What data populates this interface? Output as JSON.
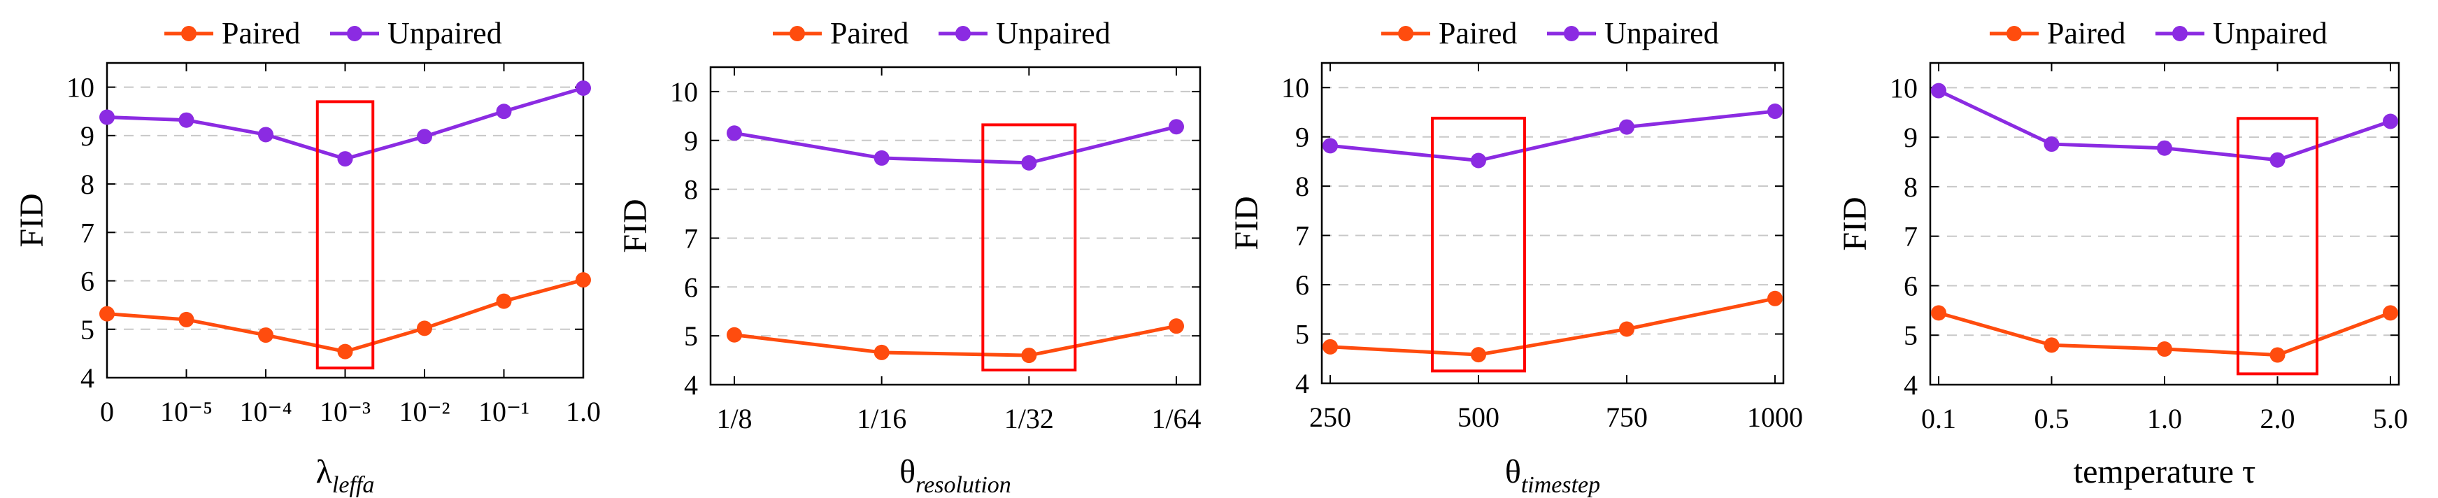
{
  "colors": {
    "paired": "#ff4c0e",
    "unpaired": "#8b2be2",
    "highlight": "#ff0000",
    "grid": "#c8c8c8"
  },
  "chart_data": [
    {
      "type": "line",
      "legend": {
        "placement": "top",
        "entries": [
          "Paired",
          "Unpaired"
        ]
      },
      "ylabel": "FID",
      "xlabel": {
        "symbol": "λ",
        "subscript": "leffa"
      },
      "categories": [
        "0",
        "10⁻⁵",
        "10⁻⁴",
        "10⁻³",
        "10⁻²",
        "10⁻¹",
        "1.0"
      ],
      "ylim": [
        4,
        10.5
      ],
      "yticks": [
        4,
        5,
        6,
        7,
        8,
        9,
        10
      ],
      "grid": "horizontal dashed",
      "series": [
        {
          "name": "Paired",
          "values": [
            5.32,
            5.2,
            4.88,
            4.54,
            5.02,
            5.58,
            6.02
          ]
        },
        {
          "name": "Unpaired",
          "values": [
            9.38,
            9.32,
            9.02,
            8.52,
            8.98,
            9.5,
            9.98
          ]
        }
      ],
      "highlight": {
        "category_index": 3,
        "y_range": [
          4.2,
          9.7
        ]
      }
    },
    {
      "type": "line",
      "legend": {
        "placement": "top",
        "entries": [
          "Paired",
          "Unpaired"
        ]
      },
      "ylabel": "FID",
      "xlabel": {
        "symbol": "θ",
        "subscript": "resolution"
      },
      "categories": [
        "1/8",
        "1/16",
        "1/32",
        "1/64"
      ],
      "ylim": [
        4,
        10.5
      ],
      "yticks": [
        4,
        5,
        6,
        7,
        8,
        9,
        10
      ],
      "grid": "horizontal dashed",
      "series": [
        {
          "name": "Paired",
          "values": [
            5.02,
            4.66,
            4.6,
            5.2
          ]
        },
        {
          "name": "Unpaired",
          "values": [
            9.15,
            8.64,
            8.54,
            9.28
          ]
        }
      ],
      "highlight": {
        "category_index": 2,
        "y_range": [
          4.3,
          9.32
        ]
      }
    },
    {
      "type": "line",
      "legend": {
        "placement": "top",
        "entries": [
          "Paired",
          "Unpaired"
        ]
      },
      "ylabel": "FID",
      "xlabel": {
        "symbol": "θ",
        "subscript": "timestep"
      },
      "categories": [
        "250",
        "500",
        "750",
        "1000"
      ],
      "ylim": [
        4,
        10.5
      ],
      "yticks": [
        4,
        5,
        6,
        7,
        8,
        9,
        10
      ],
      "grid": "horizontal dashed",
      "series": [
        {
          "name": "Paired",
          "values": [
            4.74,
            4.58,
            5.1,
            5.72
          ]
        },
        {
          "name": "Unpaired",
          "values": [
            8.82,
            8.52,
            9.2,
            9.52
          ]
        }
      ],
      "highlight": {
        "category_index": 1,
        "y_range": [
          4.25,
          9.38
        ]
      }
    },
    {
      "type": "line",
      "legend": {
        "placement": "top",
        "entries": [
          "Paired",
          "Unpaired"
        ]
      },
      "ylabel": "FID",
      "xlabel": {
        "symbol": "temperature τ",
        "subscript": ""
      },
      "categories": [
        "0.1",
        "0.5",
        "1.0",
        "2.0",
        "5.0"
      ],
      "ylim": [
        4,
        10.5
      ],
      "yticks": [
        4,
        5,
        6,
        7,
        8,
        9,
        10
      ],
      "grid": "horizontal dashed",
      "series": [
        {
          "name": "Paired",
          "values": [
            5.45,
            4.8,
            4.72,
            4.6,
            5.45
          ]
        },
        {
          "name": "Unpaired",
          "values": [
            9.94,
            8.86,
            8.78,
            8.54,
            9.32
          ]
        }
      ],
      "highlight": {
        "category_index": 3,
        "y_range": [
          4.22,
          9.38
        ]
      }
    }
  ]
}
